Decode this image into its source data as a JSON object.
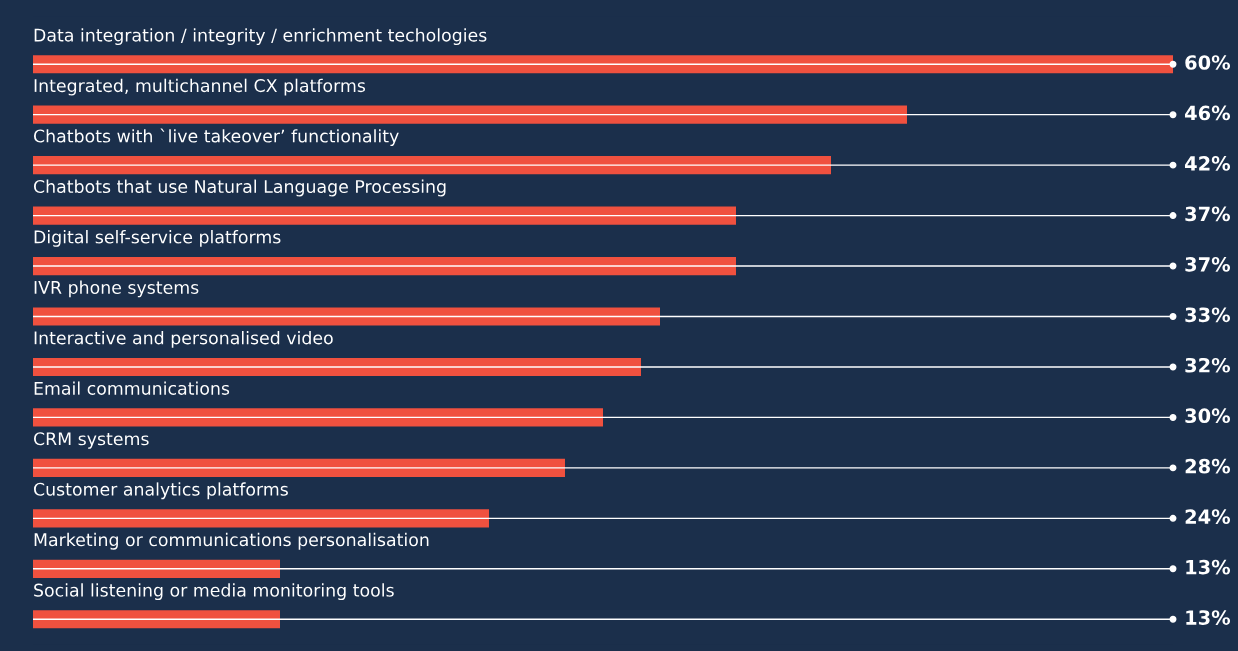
{
  "chart_data": {
    "type": "bar",
    "orientation": "horizontal",
    "categories": [
      "Data integration / integrity / enrichment techologies",
      "Integrated, multichannel CX platforms",
      "Chatbots with `live takeover’ functionality",
      "Chatbots that use Natural Language Processing",
      "Digital self-service platforms",
      "IVR phone systems",
      "Interactive and personalised video",
      "Email communications",
      "CRM systems",
      "Customer analytics platforms",
      "Marketing or communications personalisation",
      "Social listening or media monitoring tools"
    ],
    "values": [
      60,
      46,
      42,
      37,
      37,
      33,
      32,
      30,
      28,
      24,
      13,
      13
    ],
    "value_labels": [
      "60%",
      "46%",
      "42%",
      "37%",
      "37%",
      "33%",
      "32%",
      "30%",
      "28%",
      "24%",
      "13%",
      "13%"
    ],
    "color": "#f0513f",
    "xlim": [
      0,
      60
    ],
    "tick_labels": false,
    "grid": "y",
    "legend": false
  }
}
